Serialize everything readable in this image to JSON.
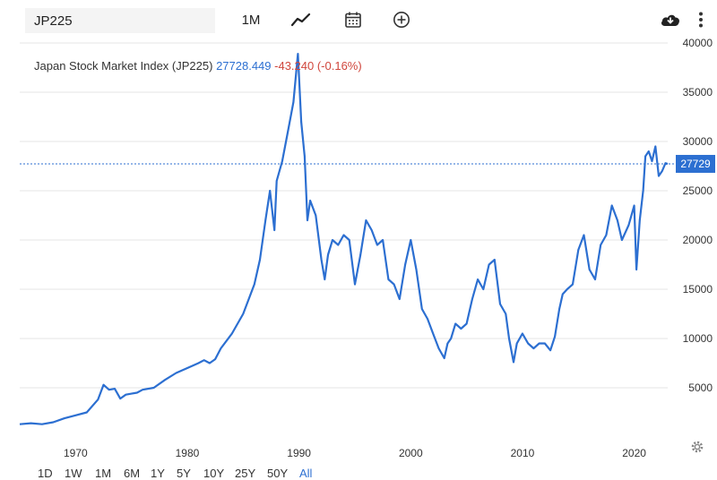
{
  "toolbar": {
    "symbol_value": "JP225",
    "period_label": "1M",
    "icons": [
      "line-chart-icon",
      "calendar-icon",
      "plus-circle-icon",
      "download-icon",
      "more-vertical-icon"
    ]
  },
  "header": {
    "name": "Japan Stock Market Index (JP225)",
    "price": "27728.449",
    "change": "-43.240 (-0.16%)"
  },
  "ranges": [
    "1D",
    "1W",
    "1M",
    "6M",
    "1Y",
    "5Y",
    "10Y",
    "25Y",
    "50Y",
    "All"
  ],
  "active_range": "All",
  "colors": {
    "line": "#2c6fd1",
    "badge": "#2c6fd1",
    "grid": "#e6e6e6",
    "negative": "#d0463c"
  },
  "chart_data": {
    "type": "line",
    "title": "Japan Stock Market Index (JP225)",
    "xlabel": "",
    "ylabel": "",
    "xlim": [
      1965,
      2023
    ],
    "ylim": [
      0,
      40000
    ],
    "x_ticks": [
      1970,
      1980,
      1990,
      2000,
      2010,
      2020
    ],
    "y_ticks": [
      5000,
      10000,
      15000,
      20000,
      25000,
      30000,
      35000,
      40000
    ],
    "grid": "horizontal",
    "last_value_label": "27729",
    "last_value": 27729,
    "series": [
      {
        "name": "",
        "x": [
          1965.0,
          1966.0,
          1967.0,
          1968.0,
          1969.0,
          1970.0,
          1971.0,
          1972.0,
          1972.5,
          1973.0,
          1973.5,
          1974.0,
          1974.5,
          1975.0,
          1975.5,
          1976.0,
          1977.0,
          1978.0,
          1979.0,
          1980.0,
          1981.0,
          1981.5,
          1982.0,
          1982.5,
          1983.0,
          1984.0,
          1985.0,
          1986.0,
          1986.5,
          1987.0,
          1987.4,
          1987.8,
          1988.0,
          1988.5,
          1989.0,
          1989.5,
          1989.9,
          1990.2,
          1990.5,
          1990.75,
          1991.0,
          1991.5,
          1992.0,
          1992.3,
          1992.6,
          1993.0,
          1993.5,
          1994.0,
          1994.5,
          1995.0,
          1995.5,
          1996.0,
          1996.5,
          1997.0,
          1997.5,
          1998.0,
          1998.5,
          1999.0,
          1999.5,
          2000.0,
          2000.5,
          2001.0,
          2001.5,
          2002.0,
          2002.5,
          2003.0,
          2003.3,
          2003.6,
          2004.0,
          2004.5,
          2005.0,
          2005.5,
          2006.0,
          2006.5,
          2007.0,
          2007.5,
          2008.0,
          2008.5,
          2008.8,
          2009.2,
          2009.5,
          2010.0,
          2010.5,
          2011.0,
          2011.5,
          2012.0,
          2012.5,
          2012.9,
          2013.3,
          2013.6,
          2014.0,
          2014.5,
          2015.0,
          2015.5,
          2016.0,
          2016.5,
          2017.0,
          2017.5,
          2018.0,
          2018.5,
          2018.9,
          2019.5,
          2020.0,
          2020.2,
          2020.5,
          2020.8,
          2021.0,
          2021.3,
          2021.6,
          2021.9,
          2022.2,
          2022.5,
          2022.8,
          2023.0
        ],
        "values": [
          1300,
          1400,
          1300,
          1500,
          1900,
          2200,
          2500,
          3800,
          5300,
          4800,
          4900,
          3900,
          4300,
          4400,
          4500,
          4800,
          5000,
          5800,
          6500,
          7000,
          7500,
          7800,
          7500,
          7900,
          9000,
          10500,
          12500,
          15500,
          18000,
          22000,
          25000,
          21000,
          26000,
          28000,
          31000,
          34000,
          38900,
          32000,
          28500,
          22000,
          24000,
          22500,
          18000,
          16000,
          18500,
          20000,
          19500,
          20500,
          20000,
          15500,
          18500,
          22000,
          21000,
          19500,
          20000,
          16000,
          15500,
          14000,
          17500,
          20000,
          17000,
          13000,
          12000,
          10500,
          9000,
          8000,
          9500,
          10000,
          11500,
          11000,
          11500,
          14000,
          16000,
          15000,
          17500,
          18000,
          13500,
          12500,
          10000,
          7600,
          9500,
          10500,
          9500,
          9000,
          9500,
          9500,
          8800,
          10200,
          13000,
          14500,
          15000,
          15500,
          19000,
          20500,
          17000,
          16000,
          19500,
          20500,
          23500,
          22000,
          20000,
          21500,
          23500,
          17000,
          22000,
          25000,
          28500,
          29000,
          28000,
          29500,
          26500,
          27000,
          27800,
          27729
        ]
      }
    ]
  }
}
